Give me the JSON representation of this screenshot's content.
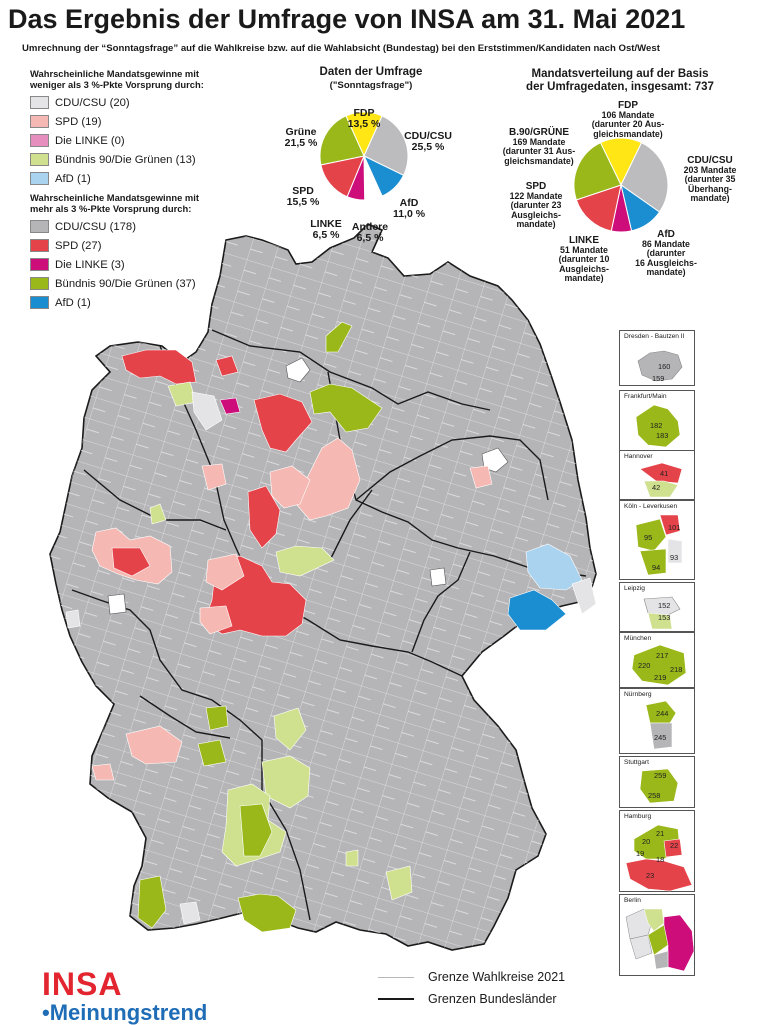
{
  "header": {
    "title": "Das Ergebnis der Umfrage von INSA am 31. Mai 2021",
    "subtitle": "Umrechnung der “Sonntagsfrage” auf die Wahlkreise bzw. auf die Wahlabsicht (Bundestag) bei den Erststimmen/Kandidaten nach Ost/West"
  },
  "legend_weak": {
    "header_line1": "Wahrscheinliche Mandatsgewinne mit",
    "header_line2": "weniger als 3 %-Pkte Vorsprung durch:",
    "items": [
      {
        "label": "CDU/CSU (20)",
        "color": "#e4e4e6"
      },
      {
        "label": "SPD (19)",
        "color": "#f5b8b2"
      },
      {
        "label": "Die LINKE (0)",
        "color": "#e68fbf"
      },
      {
        "label": "Bündnis 90/Die Grünen (13)",
        "color": "#cfe18f"
      },
      {
        "label": "AfD (1)",
        "color": "#a9d3ef"
      }
    ]
  },
  "legend_strong": {
    "header_line1": "Wahrscheinliche Mandatsgewinne mit",
    "header_line2": "mehr als 3 %-Pkte Vorsprung durch:",
    "items": [
      {
        "label": "CDU/CSU (178)",
        "color": "#b5b5b8"
      },
      {
        "label": "SPD (27)",
        "color": "#e5434a"
      },
      {
        "label": "Die LINKE (3)",
        "color": "#cc0d7a"
      },
      {
        "label": "Bündnis 90/Die Grünen (37)",
        "color": "#9ab81a"
      },
      {
        "label": "AfD (1)",
        "color": "#1a8ed1"
      }
    ]
  },
  "poll_pie": {
    "title_line1": "Daten der Umfrage",
    "title_line2": "(\"Sonntagsfrage\")",
    "slices": [
      {
        "party": "FDP",
        "pct": "13,5 %",
        "value": 13.5,
        "color": "#ffe614"
      },
      {
        "party": "CDU/CSU",
        "pct": "25,5 %",
        "value": 25.5,
        "color": "#bcbcbe"
      },
      {
        "party": "AfD",
        "pct": "11,0 %",
        "value": 11.0,
        "color": "#1a8ed1"
      },
      {
        "party": "Andere",
        "pct": "6,5 %",
        "value": 6.5,
        "color": "#ffffff"
      },
      {
        "party": "LINKE",
        "pct": "6,5 %",
        "value": 6.5,
        "color": "#cc0d7a"
      },
      {
        "party": "SPD",
        "pct": "15,5 %",
        "value": 15.5,
        "color": "#e5434a"
      },
      {
        "party": "Grüne",
        "pct": "21,5 %",
        "value": 21.5,
        "color": "#9ab81a"
      }
    ]
  },
  "seat_pie": {
    "title_line1": "Mandatsverteilung auf der Basis",
    "title_line2": "der Umfragedaten, insgesamt: 737",
    "slices": [
      {
        "value": 106,
        "color": "#ffe614"
      },
      {
        "value": 203,
        "color": "#bcbcbe"
      },
      {
        "value": 86,
        "color": "#1a8ed1"
      },
      {
        "value": 51,
        "color": "#cc0d7a"
      },
      {
        "value": 122,
        "color": "#e5434a"
      },
      {
        "value": 169,
        "color": "#9ab81a"
      }
    ],
    "labels": {
      "fdp": [
        "FDP",
        "106 Mandate",
        "(darunter 20 Aus-",
        "gleichsmandate)"
      ],
      "cdu": [
        "CDU/CSU",
        "203 Mandate",
        "(darunter 35",
        "Überhang-",
        "mandate)"
      ],
      "afd": [
        "AfD",
        "86 Mandate",
        "(darunter",
        "16 Ausgleichs-",
        "mandate)"
      ],
      "linke": [
        "LINKE",
        "51 Mandate",
        "(darunter 10",
        "Ausgleichs-",
        "mandate)"
      ],
      "spd": [
        "SPD",
        "122 Mandate",
        "(darunter 23",
        "Ausgleichs-",
        "mandate)"
      ],
      "gruene": [
        "B.90/GRÜNE",
        "169 Mandate",
        "(darunter 31 Aus-",
        "gleichsmandate)"
      ]
    }
  },
  "insets": [
    {
      "name": "Dresden - Bautzen II",
      "numbers": [
        "160",
        "159"
      ]
    },
    {
      "name": "Frankfurt/Main",
      "numbers": [
        "182",
        "183"
      ]
    },
    {
      "name": "Hannover",
      "numbers": [
        "41",
        "42"
      ]
    },
    {
      "name": "Köln - Leverkusen",
      "numbers": [
        "101",
        "95",
        "93",
        "94"
      ]
    },
    {
      "name": "Leipzig",
      "numbers": [
        "152",
        "153"
      ]
    },
    {
      "name": "München",
      "numbers": [
        "217",
        "220",
        "218",
        "219"
      ]
    },
    {
      "name": "Nürnberg",
      "numbers": [
        "244",
        "245"
      ]
    },
    {
      "name": "Stuttgart",
      "numbers": [
        "259",
        "258"
      ]
    },
    {
      "name": "Hamburg",
      "numbers": [
        "21",
        "20",
        "22",
        "19",
        "18",
        "23"
      ]
    },
    {
      "name": "Berlin",
      "numbers": []
    }
  ],
  "map_legend": {
    "wahlkreise": "Grenze Wahlkreise 2021",
    "laender": "Grenzen Bundesländer"
  },
  "logo": {
    "insa": "INSA",
    "meinungstrend": "•Meinungstrend"
  }
}
